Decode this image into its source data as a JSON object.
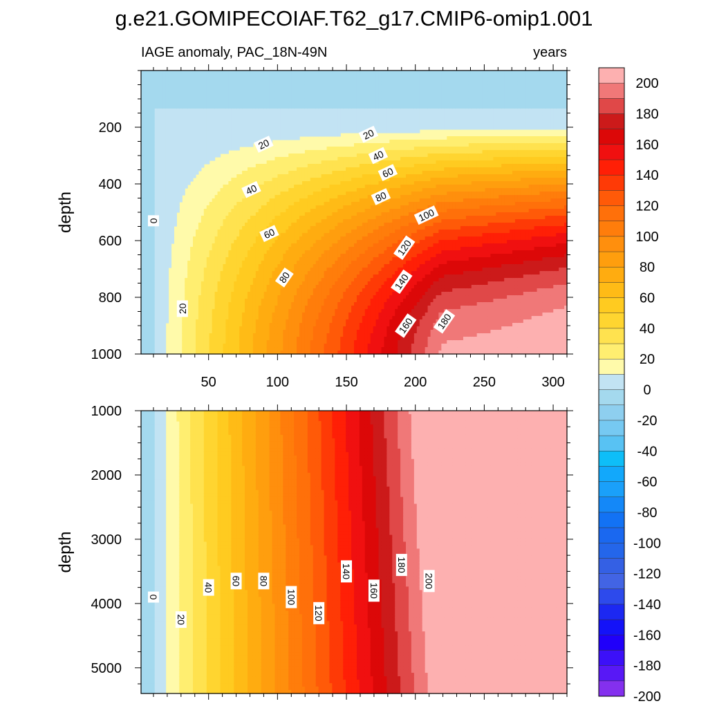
{
  "chart_data": {
    "type": "contour",
    "title": "g.e21.GOMIPECOIAF.T62_g17.CMIP6-omip1.001",
    "subtitle_left": "IAGE anomaly, PAC_18N-49N",
    "subtitle_right": "years",
    "xaxis": {
      "range": [
        1,
        310
      ],
      "ticks": [
        50,
        100,
        150,
        200,
        250,
        300
      ]
    },
    "panels": [
      {
        "name": "upper-ocean",
        "ylabel": "depth",
        "yrange": [
          0,
          1000
        ],
        "yticks": [
          200,
          400,
          600,
          800,
          1000
        ],
        "contour_labels": [
          {
            "text": "0",
            "x": 10,
            "depth": 530
          },
          {
            "text": "20",
            "x": 31,
            "depth": 840
          },
          {
            "text": "20",
            "x": 90,
            "depth": 260
          },
          {
            "text": "20",
            "x": 166,
            "depth": 225
          },
          {
            "text": "40",
            "x": 81,
            "depth": 420
          },
          {
            "text": "40",
            "x": 173,
            "depth": 300
          },
          {
            "text": "60",
            "x": 94,
            "depth": 575
          },
          {
            "text": "60",
            "x": 180,
            "depth": 360
          },
          {
            "text": "80",
            "x": 105,
            "depth": 730
          },
          {
            "text": "80",
            "x": 175,
            "depth": 445
          },
          {
            "text": "100",
            "x": 208,
            "depth": 510
          },
          {
            "text": "120",
            "x": 192,
            "depth": 625
          },
          {
            "text": "140",
            "x": 190,
            "depth": 745
          },
          {
            "text": "160",
            "x": 193,
            "depth": 900
          },
          {
            "text": "180",
            "x": 221,
            "depth": 885
          }
        ]
      },
      {
        "name": "deep-ocean",
        "ylabel": "depth",
        "yrange": [
          1000,
          5400
        ],
        "yticks": [
          1000,
          2000,
          3000,
          4000,
          5000
        ],
        "contour_labels": [
          {
            "text": "0",
            "x": 10,
            "depth": 3900
          },
          {
            "text": "20",
            "x": 30,
            "depth": 4250
          },
          {
            "text": "40",
            "x": 50,
            "depth": 3750
          },
          {
            "text": "60",
            "x": 70,
            "depth": 3650
          },
          {
            "text": "80",
            "x": 90,
            "depth": 3650
          },
          {
            "text": "100",
            "x": 110,
            "depth": 3900
          },
          {
            "text": "120",
            "x": 130,
            "depth": 4150
          },
          {
            "text": "140",
            "x": 150,
            "depth": 3500
          },
          {
            "text": "160",
            "x": 170,
            "depth": 3800
          },
          {
            "text": "180",
            "x": 190,
            "depth": 3400
          },
          {
            "text": "200",
            "x": 210,
            "depth": 3650
          }
        ]
      }
    ],
    "colorbar": {
      "labels": [
        200,
        180,
        160,
        140,
        120,
        100,
        80,
        60,
        40,
        20,
        0,
        -20,
        -40,
        -60,
        -80,
        -100,
        -120,
        -140,
        -160,
        -180,
        -200
      ],
      "colors": [
        "#fdb0b0",
        "#f07878",
        "#e04848",
        "#cc1a1a",
        "#dc0808",
        "#f01010",
        "#ff1f06",
        "#fe3a06",
        "#ff5a08",
        "#ff700a",
        "#ff7d0b",
        "#ff8f0d",
        "#ff9e0e",
        "#ffac10",
        "#ffbb16",
        "#ffcb20",
        "#ffd530",
        "#ffe24f",
        "#ffee70",
        "#fffaaa",
        "#c2e3f3",
        "#a4d9ee",
        "#8ecfef",
        "#76c9f2",
        "#58c2f3",
        "#0ebef8",
        "#12a8fb",
        "#1aa0fa",
        "#1488f8",
        "#1272f4",
        "#1a68f0",
        "#2466ea",
        "#3460e4",
        "#4264e4",
        "#2d4aec",
        "#1c28f2",
        "#1412f8",
        "#2000fa",
        "#3c10f8",
        "#5818f6",
        "#8430ee"
      ],
      "level_step": 10,
      "max": 210,
      "min": -210
    }
  }
}
